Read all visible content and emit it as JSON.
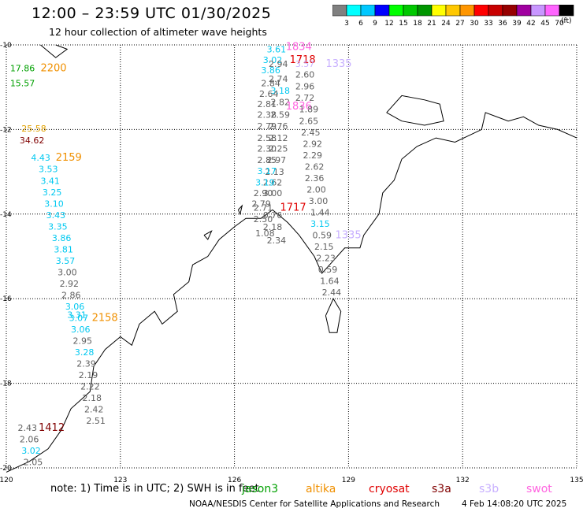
{
  "header": {
    "title": "12:00 – 23:59 UTC 01/30/2025",
    "subtitle": "12 hour collection of altimeter wave heights"
  },
  "colorbar": {
    "unit_label": "(ft)",
    "ticks": [
      "3",
      "6",
      "9",
      "12",
      "15",
      "18",
      "21",
      "24",
      "27",
      "30",
      "33",
      "36",
      "39",
      "42",
      "45",
      "70"
    ],
    "colors": [
      "#808080",
      "#00ffff",
      "#00c8ff",
      "#0000ff",
      "#00ff00",
      "#00c800",
      "#009600",
      "#ffff00",
      "#ffc800",
      "#ff9600",
      "#ff0000",
      "#c80000",
      "#960000",
      "#a000a0",
      "#c896ff",
      "#ff64ff",
      "#000000"
    ]
  },
  "map": {
    "lat_labels": [
      "-10",
      "-12",
      "-14",
      "-16",
      "-18",
      "-20"
    ],
    "lon_labels": [
      "120",
      "123",
      "126",
      "129",
      "132",
      "135"
    ],
    "grid_lats": [
      -10,
      -12,
      -14,
      -16,
      -18,
      -20
    ],
    "grid_lons": [
      120,
      123,
      126,
      129,
      132,
      135
    ],
    "coast_color": "#000000",
    "grid_color": "#000000",
    "colors": {
      "gray": "#606060",
      "cyan": "#00c8f0",
      "green": "#00a000",
      "orange": "#f09000",
      "darkred": "#800000",
      "magenta": "#ff64e0",
      "lavender": "#c8b0ff",
      "red": "#e00000",
      "gold": "#e0a000"
    },
    "track_west": [
      {
        "text": "17.86",
        "c": "green",
        "lon": 120.1,
        "lat": -10.55
      },
      {
        "text": "15.57",
        "c": "green",
        "lon": 120.1,
        "lat": -10.9
      },
      {
        "text": "2200",
        "c": "orange",
        "lon": 120.9,
        "lat": -10.55,
        "big": true
      },
      {
        "text": "25.58",
        "c": "gold",
        "lon": 120.4,
        "lat": -11.97,
        "big": false
      },
      {
        "text": "34.62",
        "c": "darkred",
        "lon": 120.35,
        "lat": -12.25
      },
      {
        "text": "4.43",
        "c": "cyan",
        "lon": 120.65,
        "lat": -12.66
      },
      {
        "text": "2159",
        "c": "orange",
        "lon": 121.3,
        "lat": -12.66,
        "big": true
      },
      {
        "text": "3.53",
        "c": "cyan",
        "lon": 120.85,
        "lat": -12.93
      },
      {
        "text": "3.41",
        "c": "cyan",
        "lon": 120.9,
        "lat": -13.21
      },
      {
        "text": "3.25",
        "c": "cyan",
        "lon": 120.95,
        "lat": -13.48
      },
      {
        "text": "3.10",
        "c": "cyan",
        "lon": 121.0,
        "lat": -13.75
      },
      {
        "text": "3.43",
        "c": "cyan",
        "lon": 121.05,
        "lat": -14.02
      },
      {
        "text": "3.35",
        "c": "cyan",
        "lon": 121.1,
        "lat": -14.29
      },
      {
        "text": "3.86",
        "c": "cyan",
        "lon": 121.2,
        "lat": -14.56
      },
      {
        "text": "3.81",
        "c": "cyan",
        "lon": 121.25,
        "lat": -14.83
      },
      {
        "text": "3.57",
        "c": "cyan",
        "lon": 121.3,
        "lat": -15.1
      },
      {
        "text": "3.00",
        "c": "gray",
        "lon": 121.35,
        "lat": -15.37
      },
      {
        "text": "2.92",
        "c": "gray",
        "lon": 121.4,
        "lat": -15.64
      },
      {
        "text": "2.86",
        "c": "gray",
        "lon": 121.45,
        "lat": -15.91
      },
      {
        "text": "3.06",
        "c": "cyan",
        "lon": 121.55,
        "lat": -16.18
      },
      {
        "text": "3.31",
        "c": "cyan",
        "lon": 121.6,
        "lat": -16.38
      },
      {
        "text": "2158",
        "c": "orange",
        "lon": 122.25,
        "lat": -16.45,
        "big": true
      },
      {
        "text": "3.07",
        "c": "cyan",
        "lon": 121.65,
        "lat": -16.45
      },
      {
        "text": "3.06",
        "c": "cyan",
        "lon": 121.7,
        "lat": -16.72
      },
      {
        "text": "2.95",
        "c": "gray",
        "lon": 121.75,
        "lat": -16.99
      },
      {
        "text": "3.28",
        "c": "cyan",
        "lon": 121.8,
        "lat": -17.26
      },
      {
        "text": "2.39",
        "c": "gray",
        "lon": 121.85,
        "lat": -17.53
      },
      {
        "text": "2.19",
        "c": "gray",
        "lon": 121.9,
        "lat": -17.8
      },
      {
        "text": "2.22",
        "c": "gray",
        "lon": 121.95,
        "lat": -18.07
      },
      {
        "text": "2.18",
        "c": "gray",
        "lon": 122.0,
        "lat": -18.34
      },
      {
        "text": "2.42",
        "c": "gray",
        "lon": 122.05,
        "lat": -18.61
      },
      {
        "text": "2.51",
        "c": "gray",
        "lon": 122.1,
        "lat": -18.88
      }
    ],
    "track_sw": [
      {
        "text": "2.43",
        "c": "gray",
        "lon": 120.3,
        "lat": -19.05
      },
      {
        "text": "1412",
        "c": "darkred",
        "lon": 120.85,
        "lat": -19.05,
        "big": true
      },
      {
        "text": "2.06",
        "c": "gray",
        "lon": 120.35,
        "lat": -19.32
      },
      {
        "text": "3.02",
        "c": "cyan",
        "lon": 120.4,
        "lat": -19.59
      },
      {
        "text": "2.05",
        "c": "gray",
        "lon": 120.45,
        "lat": -19.86
      }
    ],
    "track_central": [
      {
        "text": "3.61",
        "c": "cyan",
        "lon": 126.85,
        "lat": -10.1
      },
      {
        "text": "3.02",
        "c": "cyan",
        "lon": 126.75,
        "lat": -10.35
      },
      {
        "text": "2.94",
        "c": "gray",
        "lon": 126.9,
        "lat": -10.45
      },
      {
        "text": "1718",
        "c": "red",
        "lon": 127.45,
        "lat": -10.35,
        "big": true
      },
      {
        "text": "3.86",
        "c": "cyan",
        "lon": 126.7,
        "lat": -10.6
      },
      {
        "text": "2.74",
        "c": "gray",
        "lon": 126.9,
        "lat": -10.8
      },
      {
        "text": "2.84",
        "c": "gray",
        "lon": 126.7,
        "lat": -10.9
      },
      {
        "text": "3.18",
        "c": "cyan",
        "lon": 126.95,
        "lat": -11.08
      },
      {
        "text": "2.64",
        "c": "gray",
        "lon": 126.65,
        "lat": -11.15
      },
      {
        "text": "2.82",
        "c": "gray",
        "lon": 126.95,
        "lat": -11.35
      },
      {
        "text": "2.81",
        "c": "gray",
        "lon": 126.6,
        "lat": -11.4
      },
      {
        "text": "2.59",
        "c": "gray",
        "lon": 126.95,
        "lat": -11.65
      },
      {
        "text": "2.38",
        "c": "gray",
        "lon": 126.6,
        "lat": -11.65
      },
      {
        "text": "2.76",
        "c": "gray",
        "lon": 126.9,
        "lat": -11.92
      },
      {
        "text": "2.79",
        "c": "gray",
        "lon": 126.6,
        "lat": -11.92
      },
      {
        "text": "2.12",
        "c": "gray",
        "lon": 126.9,
        "lat": -12.2
      },
      {
        "text": "2.58",
        "c": "gray",
        "lon": 126.6,
        "lat": -12.2
      },
      {
        "text": "2.25",
        "c": "gray",
        "lon": 126.9,
        "lat": -12.45
      },
      {
        "text": "2.30",
        "c": "gray",
        "lon": 126.6,
        "lat": -12.45
      },
      {
        "text": "2.97",
        "c": "gray",
        "lon": 126.85,
        "lat": -12.72
      },
      {
        "text": "2.85",
        "c": "gray",
        "lon": 126.6,
        "lat": -12.72
      },
      {
        "text": "2.13",
        "c": "gray",
        "lon": 126.8,
        "lat": -13.0
      },
      {
        "text": "3.17",
        "c": "cyan",
        "lon": 126.6,
        "lat": -12.98
      },
      {
        "text": "2.62",
        "c": "gray",
        "lon": 126.75,
        "lat": -13.25
      },
      {
        "text": "3.19",
        "c": "cyan",
        "lon": 126.55,
        "lat": -13.25
      },
      {
        "text": "3.00",
        "c": "gray",
        "lon": 126.75,
        "lat": -13.5
      },
      {
        "text": "2.90",
        "c": "gray",
        "lon": 126.5,
        "lat": -13.5
      },
      {
        "text": "2.79",
        "c": "gray",
        "lon": 126.45,
        "lat": -13.75
      },
      {
        "text": "2.71",
        "c": "gray",
        "lon": 126.5,
        "lat": -13.85
      },
      {
        "text": "1717",
        "c": "red",
        "lon": 127.2,
        "lat": -13.85,
        "big": true
      },
      {
        "text": "0.76",
        "c": "gray",
        "lon": 126.75,
        "lat": -14.02
      },
      {
        "text": "2.50",
        "c": "gray",
        "lon": 126.5,
        "lat": -14.12
      },
      {
        "text": "2.18",
        "c": "gray",
        "lon": 126.75,
        "lat": -14.3
      },
      {
        "text": "1.08",
        "c": "gray",
        "lon": 126.55,
        "lat": -14.45
      },
      {
        "text": "2.34",
        "c": "gray",
        "lon": 126.85,
        "lat": -14.62
      }
    ],
    "track_east": [
      {
        "text": "1834",
        "c": "magenta",
        "lon": 127.35,
        "lat": -10.05,
        "big": true
      },
      {
        "text": "3.57",
        "c": "lavender",
        "lon": 127.6,
        "lat": -10.45
      },
      {
        "text": "1335",
        "c": "lavender",
        "lon": 128.4,
        "lat": -10.45,
        "big": true
      },
      {
        "text": "2.60",
        "c": "gray",
        "lon": 127.6,
        "lat": -10.7
      },
      {
        "text": "2.96",
        "c": "gray",
        "lon": 127.6,
        "lat": -10.98
      },
      {
        "text": "2.72",
        "c": "gray",
        "lon": 127.6,
        "lat": -11.25
      },
      {
        "text": "1836",
        "c": "magenta",
        "lon": 127.35,
        "lat": -11.45,
        "big": true
      },
      {
        "text": "1.89",
        "c": "gray",
        "lon": 127.7,
        "lat": -11.52
      },
      {
        "text": "2.65",
        "c": "gray",
        "lon": 127.7,
        "lat": -11.8
      },
      {
        "text": "2.45",
        "c": "gray",
        "lon": 127.75,
        "lat": -12.07
      },
      {
        "text": "2.92",
        "c": "gray",
        "lon": 127.8,
        "lat": -12.34
      },
      {
        "text": "2.29",
        "c": "gray",
        "lon": 127.8,
        "lat": -12.61
      },
      {
        "text": "2.62",
        "c": "gray",
        "lon": 127.85,
        "lat": -12.88
      },
      {
        "text": "2.36",
        "c": "gray",
        "lon": 127.85,
        "lat": -13.15
      },
      {
        "text": "2.00",
        "c": "gray",
        "lon": 127.9,
        "lat": -13.42
      },
      {
        "text": "3.00",
        "c": "gray",
        "lon": 127.95,
        "lat": -13.69
      },
      {
        "text": "1.44",
        "c": "gray",
        "lon": 128.0,
        "lat": -13.96
      },
      {
        "text": "3.15",
        "c": "cyan",
        "lon": 128.0,
        "lat": -14.23
      },
      {
        "text": "1335",
        "c": "lavender",
        "lon": 128.65,
        "lat": -14.5,
        "big": true
      },
      {
        "text": "0.59",
        "c": "gray",
        "lon": 128.05,
        "lat": -14.5
      },
      {
        "text": "2.15",
        "c": "gray",
        "lon": 128.1,
        "lat": -14.77
      },
      {
        "text": "2.23",
        "c": "gray",
        "lon": 128.15,
        "lat": -15.04
      },
      {
        "text": "0.59",
        "c": "gray",
        "lon": 128.2,
        "lat": -15.31
      },
      {
        "text": "1.64",
        "c": "gray",
        "lon": 128.25,
        "lat": -15.58
      },
      {
        "text": "2.44",
        "c": "gray",
        "lon": 128.3,
        "lat": -15.85
      }
    ]
  },
  "footer": {
    "note": "note:  1) Time is in UTC; 2) SWH is in feet",
    "legend": [
      {
        "label": "jason3",
        "color": "#00a000"
      },
      {
        "label": "altika",
        "color": "#f09000"
      },
      {
        "label": "cryosat",
        "color": "#e00000"
      },
      {
        "label": "s3a",
        "color": "#800000"
      },
      {
        "label": "s3b",
        "color": "#c8b0ff"
      },
      {
        "label": "swot",
        "color": "#ff64e0"
      }
    ],
    "credit": "NOAA/NESDIS Center for Satellite Applications and Research",
    "stamp": "4 Feb 14:08:20 UTC 2025"
  }
}
